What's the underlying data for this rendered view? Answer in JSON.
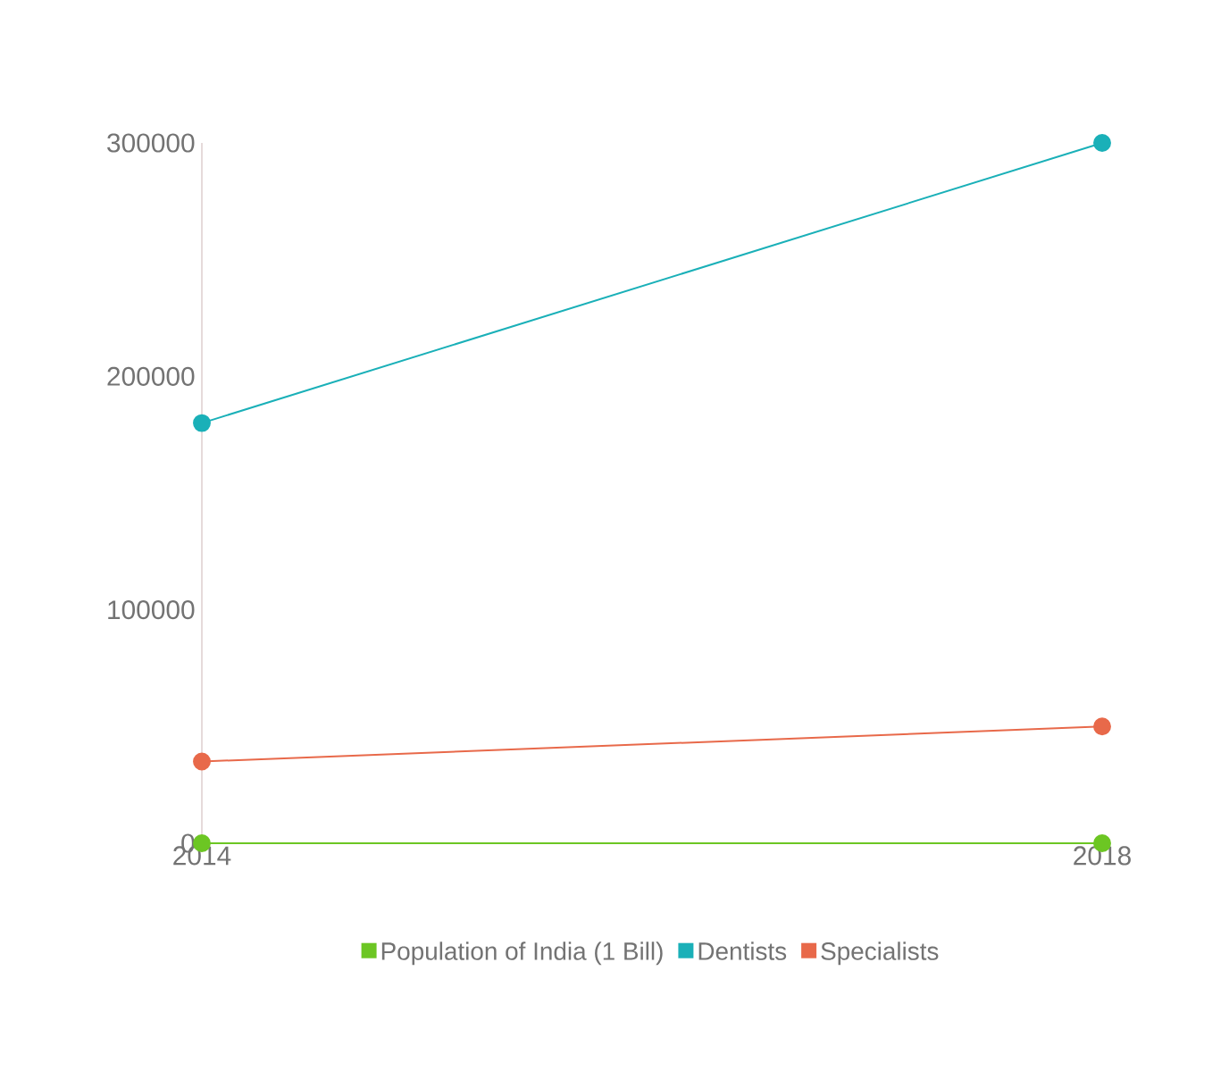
{
  "chart_data": {
    "type": "line",
    "categories": [
      "2014",
      "2018"
    ],
    "series": [
      {
        "name": "Population of India (1 Bill)",
        "color": "#6cc623",
        "values": [
          0,
          0
        ]
      },
      {
        "name": "Dentists",
        "color": "#1ab0b8",
        "values": [
          180000,
          300000
        ]
      },
      {
        "name": "Specialists",
        "color": "#e8694a",
        "values": [
          35000,
          50000
        ]
      }
    ],
    "ylim": [
      0,
      300000
    ],
    "yticks": [
      0,
      100000,
      200000,
      300000
    ],
    "grid": false,
    "legend": "bottom",
    "marker": "circle",
    "line_style": "solid"
  }
}
